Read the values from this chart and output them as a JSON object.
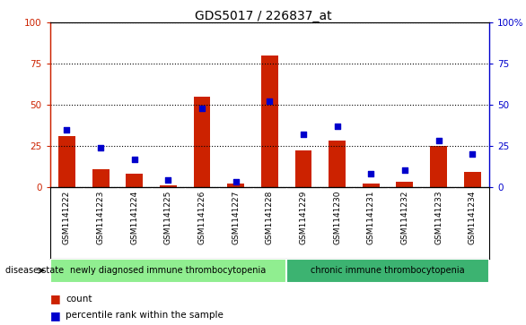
{
  "title": "GDS5017 / 226837_at",
  "samples": [
    "GSM1141222",
    "GSM1141223",
    "GSM1141224",
    "GSM1141225",
    "GSM1141226",
    "GSM1141227",
    "GSM1141228",
    "GSM1141229",
    "GSM1141230",
    "GSM1141231",
    "GSM1141232",
    "GSM1141233",
    "GSM1141234"
  ],
  "counts": [
    31,
    11,
    8,
    1,
    55,
    2,
    80,
    22,
    28,
    2,
    3,
    25,
    9
  ],
  "percentiles": [
    35,
    24,
    17,
    4,
    48,
    3,
    52,
    32,
    37,
    8,
    10,
    28,
    20
  ],
  "ylim": [
    0,
    100
  ],
  "bar_color": "#CC2200",
  "dot_color": "#0000CC",
  "plot_bg_color": "#FFFFFF",
  "xtick_bg_color": "#D3D3D3",
  "group1_label": "newly diagnosed immune thrombocytopenia",
  "group2_label": "chronic immune thrombocytopenia",
  "group1_color": "#90EE90",
  "group2_color": "#3CB371",
  "group1_count": 7,
  "group2_count": 6,
  "disease_label": "disease state",
  "legend_count_label": "count",
  "legend_pct_label": "percentile rank within the sample",
  "grid_color": "black",
  "yticks": [
    0,
    25,
    50,
    75,
    100
  ],
  "title_fontsize": 10,
  "tick_fontsize": 7.5,
  "label_fontsize": 7.5
}
